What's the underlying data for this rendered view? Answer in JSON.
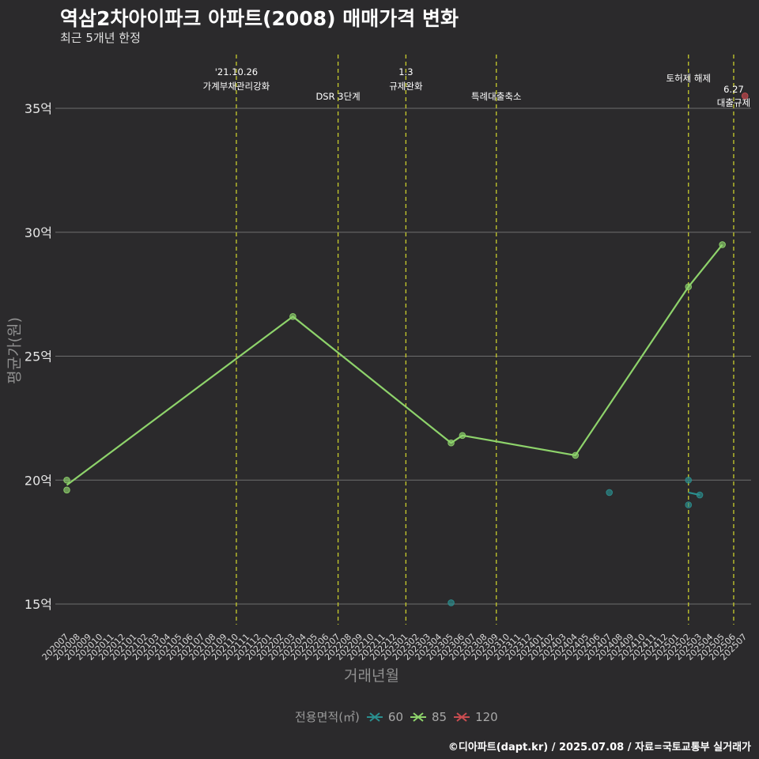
{
  "header": {
    "title": "역삼2차아이파크 아파트(2008) 매매가격 변화",
    "subtitle": "최근 5개년 한정"
  },
  "footer": {
    "credit": "©디아파트(dapt.kr) / 2025.07.08 / 자료=국토교통부 실거래가"
  },
  "legend": {
    "title": "전용면적(㎡)"
  },
  "chart_data": {
    "type": "line",
    "xlabel": "거래년월",
    "ylabel": "평균가(원)",
    "ylim": [
      14,
      37
    ],
    "yticks": [
      15,
      20,
      25,
      30,
      35
    ],
    "ytick_labels": [
      "15억",
      "20억",
      "25억",
      "30억",
      "35억"
    ],
    "categories": [
      "202007",
      "202008",
      "202009",
      "202010",
      "202011",
      "202012",
      "202101",
      "202102",
      "202103",
      "202104",
      "202105",
      "202106",
      "202107",
      "202108",
      "202109",
      "202110",
      "202111",
      "202112",
      "202201",
      "202202",
      "202203",
      "202204",
      "202205",
      "202206",
      "202207",
      "202208",
      "202209",
      "202210",
      "202211",
      "202212",
      "202301",
      "202302",
      "202303",
      "202304",
      "202305",
      "202306",
      "202307",
      "202308",
      "202309",
      "202310",
      "202311",
      "202312",
      "202401",
      "202402",
      "202403",
      "202404",
      "202405",
      "202406",
      "202407",
      "202408",
      "202409",
      "202410",
      "202411",
      "202412",
      "202501",
      "202502",
      "202503",
      "202504",
      "202505",
      "202506",
      "202507"
    ],
    "series": [
      {
        "name": "60",
        "color": "#2a8f8f",
        "points": [
          [
            "202305",
            15.05
          ],
          [
            "202407",
            19.5
          ],
          [
            "202502",
            20.0
          ],
          [
            "202502",
            19.0
          ],
          [
            "202503",
            19.4
          ]
        ],
        "line": [
          [
            "202502",
            19.5
          ],
          [
            "202503",
            19.4
          ]
        ]
      },
      {
        "name": "85",
        "color": "#8ed36b",
        "points": [
          [
            "202007",
            20.0
          ],
          [
            "202007",
            19.6
          ],
          [
            "202203",
            26.6
          ],
          [
            "202305",
            21.5
          ],
          [
            "202306",
            21.8
          ],
          [
            "202404",
            21.0
          ],
          [
            "202502",
            27.8
          ],
          [
            "202505",
            29.5
          ]
        ],
        "line": [
          [
            "202007",
            19.8
          ],
          [
            "202203",
            26.6
          ],
          [
            "202305",
            21.5
          ],
          [
            "202306",
            21.8
          ],
          [
            "202404",
            21.0
          ],
          [
            "202502",
            27.8
          ],
          [
            "202505",
            29.5
          ]
        ]
      },
      {
        "name": "120",
        "color": "#c94c50",
        "points": [
          [
            "202507",
            35.5
          ]
        ],
        "line": []
      }
    ],
    "events": [
      {
        "x": "202110",
        "lines": [
          "'21.10.26",
          "가계부채관리강화"
        ]
      },
      {
        "x": "202207",
        "lines": [
          "DSR 3단계"
        ]
      },
      {
        "x": "202301",
        "lines": [
          "1.3",
          "규제완화"
        ]
      },
      {
        "x": "202309",
        "lines": [
          "특례대출축소"
        ]
      },
      {
        "x": "202502",
        "lines": [
          "토허제 해제"
        ]
      },
      {
        "x": "202506",
        "lines": [
          "6.27",
          "대출규제"
        ]
      }
    ],
    "grid": true
  }
}
